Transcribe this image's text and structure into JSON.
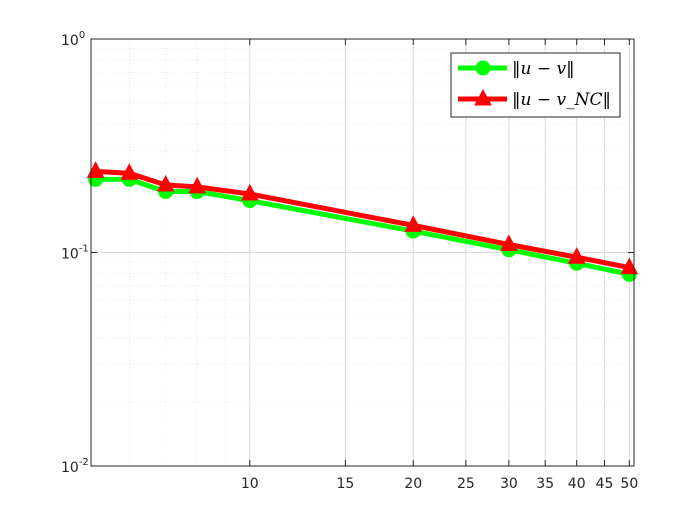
{
  "chart_data": {
    "type": "line",
    "xscale": "log",
    "yscale": "log",
    "xlim": [
      5.1,
      51
    ],
    "ylim": [
      0.01,
      1
    ],
    "grid": true,
    "minor_grid": true,
    "legend_position": "top-right",
    "xticks": [
      10,
      15,
      20,
      25,
      30,
      35,
      40,
      45,
      50
    ],
    "xtick_labels": [
      "10",
      "15",
      "20",
      "25",
      "30",
      "35",
      "40",
      "45",
      "50"
    ],
    "yticks": [
      {
        "value": 1,
        "base": "10",
        "exp": "0"
      },
      {
        "value": 0.1,
        "base": "10",
        "exp": "-1"
      },
      {
        "value": 0.01,
        "base": "10",
        "exp": "-2"
      }
    ],
    "x": [
      5.2,
      6,
      7,
      8,
      10,
      20,
      30,
      40,
      50
    ],
    "series": [
      {
        "name": "‖u − v‖",
        "color": "#00ff00",
        "marker": "circle",
        "values": [
          0.22,
          0.22,
          0.193,
          0.193,
          0.175,
          0.126,
          0.103,
          0.089,
          0.079
        ]
      },
      {
        "name": "‖u − v_NC‖",
        "color": "#ff0000",
        "marker": "triangle",
        "values": [
          0.24,
          0.235,
          0.207,
          0.203,
          0.188,
          0.134,
          0.109,
          0.095,
          0.085
        ]
      }
    ]
  }
}
